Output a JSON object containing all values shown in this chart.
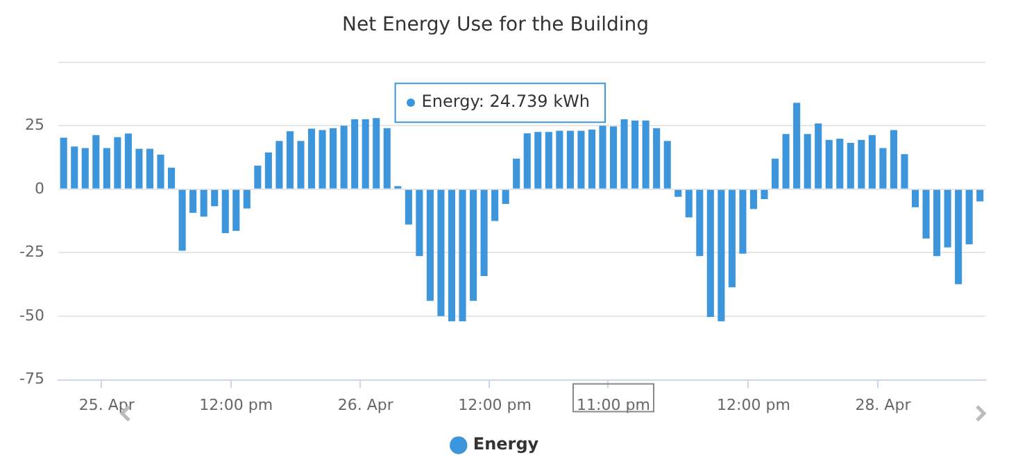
{
  "chart_data": {
    "type": "bar",
    "title": "Net Energy Use for the Building",
    "categories": [
      null,
      null,
      null,
      null,
      "25. Apr",
      null,
      null,
      null,
      null,
      null,
      null,
      null,
      null,
      null,
      null,
      null,
      "12:00 pm",
      null,
      null,
      null,
      null,
      null,
      null,
      null,
      null,
      null,
      null,
      null,
      "26. Apr",
      null,
      null,
      null,
      null,
      null,
      null,
      null,
      null,
      null,
      null,
      null,
      "12:00 pm",
      null,
      null,
      null,
      null,
      null,
      null,
      null,
      null,
      null,
      null,
      "11:00 pm",
      null,
      null,
      null,
      null,
      null,
      null,
      null,
      null,
      null,
      null,
      null,
      null,
      "12:00 pm",
      null,
      null,
      null,
      null,
      null,
      null,
      null,
      null,
      null,
      null,
      null,
      "28. Apr",
      null,
      null,
      null,
      null,
      null,
      null,
      null,
      null,
      null
    ],
    "series": [
      {
        "name": "Energy",
        "color": "#3d96dc",
        "values": [
          20.3,
          16.8,
          16.2,
          21.3,
          16.2,
          20.5,
          21.9,
          15.9,
          15.9,
          13.6,
          8.5,
          -24.2,
          -9.3,
          -10.8,
          -6.7,
          -17.3,
          -16.4,
          -7.6,
          9.3,
          14.5,
          19,
          22.8,
          19,
          23.8,
          23.3,
          24,
          25,
          27.5,
          27.5,
          28,
          24,
          1.2,
          -13.9,
          -26.3,
          -43.9,
          -49.9,
          -52,
          -52,
          -43.9,
          -34.2,
          -12.5,
          -5.8,
          12,
          22,
          22.5,
          22.5,
          23,
          23,
          23,
          23.5,
          25,
          24.739,
          27.5,
          27,
          27,
          24,
          19,
          -3,
          -11.1,
          -26.3,
          -50.3,
          -52,
          -38.6,
          -25.4,
          -7.8,
          -3.9,
          12,
          21.7,
          34,
          21.7,
          25.9,
          19.4,
          19.9,
          18.2,
          19.4,
          21.3,
          16.2,
          23.3,
          13.8,
          -7.1,
          -19.4,
          -26.3,
          -22.9,
          -37.4,
          -21.7,
          -4.8
        ]
      }
    ],
    "ylim": [
      -75,
      50
    ],
    "yticks": [
      -75,
      -50,
      -25,
      0,
      25,
      {
        "value": 50,
        "label": null
      }
    ],
    "grid": "y",
    "legend": "bottom",
    "annotations": [
      {
        "text": "Energy: 24.739 kWh",
        "x": "11:00 pm",
        "y": 24.739
      }
    ]
  }
}
